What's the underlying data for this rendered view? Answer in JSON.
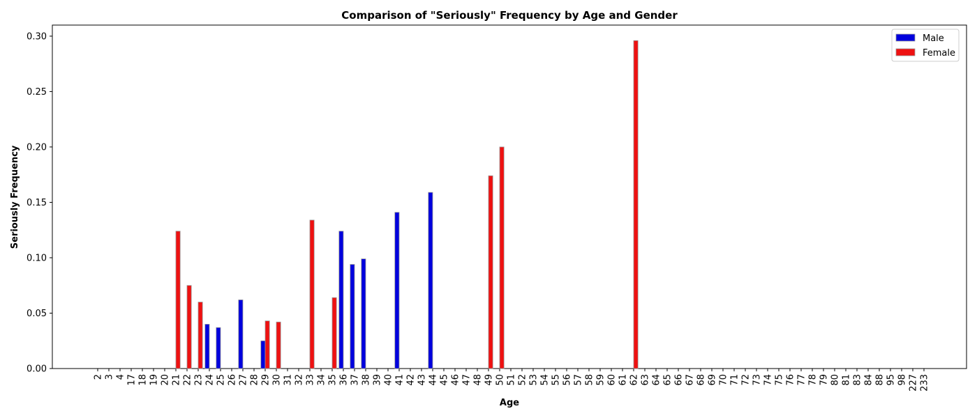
{
  "chart_data": {
    "type": "bar",
    "title": "Comparison of \"Seriously\" Frequency by Age and Gender",
    "xlabel": "Age",
    "ylabel": "Seriously Frequency",
    "ylim": [
      0,
      0.31
    ],
    "yticks": [
      "0.00",
      "0.05",
      "0.10",
      "0.15",
      "0.20",
      "0.25",
      "0.30"
    ],
    "grid": false,
    "legend_position": "top-right",
    "categories": [
      "2",
      "3",
      "4",
      "17",
      "18",
      "19",
      "20",
      "21",
      "22",
      "23",
      "24",
      "25",
      "26",
      "27",
      "28",
      "29",
      "30",
      "31",
      "32",
      "33",
      "34",
      "35",
      "36",
      "37",
      "38",
      "39",
      "40",
      "41",
      "42",
      "43",
      "44",
      "45",
      "46",
      "47",
      "48",
      "49",
      "50",
      "51",
      "52",
      "53",
      "54",
      "55",
      "56",
      "57",
      "58",
      "59",
      "60",
      "61",
      "62",
      "63",
      "64",
      "65",
      "66",
      "67",
      "68",
      "69",
      "70",
      "71",
      "72",
      "73",
      "74",
      "75",
      "76",
      "77",
      "78",
      "79",
      "80",
      "81",
      "83",
      "84",
      "88",
      "95",
      "98",
      "227",
      "233"
    ],
    "series": [
      {
        "name": "Male",
        "color": "#0000dd",
        "values": [
          0,
          0,
          0,
          0,
          0,
          0,
          0,
          0,
          0,
          0,
          0.04,
          0.037,
          0,
          0.062,
          0,
          0.025,
          0,
          0,
          0,
          0,
          0,
          0,
          0.124,
          0.094,
          0.099,
          0,
          0,
          0.141,
          0,
          0,
          0.159,
          0,
          0,
          0,
          0,
          0,
          0,
          0,
          0,
          0,
          0,
          0,
          0,
          0,
          0,
          0,
          0,
          0,
          0,
          0,
          0,
          0,
          0,
          0,
          0,
          0,
          0,
          0,
          0,
          0,
          0,
          0,
          0,
          0,
          0,
          0,
          0,
          0,
          0,
          0,
          0,
          0,
          0,
          0,
          0
        ]
      },
      {
        "name": "Female",
        "color": "#ee1111",
        "values": [
          0,
          0,
          0,
          0,
          0,
          0,
          0,
          0.124,
          0.075,
          0.06,
          0,
          0,
          0,
          0,
          0,
          0.043,
          0.042,
          0,
          0,
          0.134,
          0,
          0.064,
          0,
          0,
          0,
          0,
          0,
          0,
          0,
          0,
          0,
          0,
          0,
          0,
          0,
          0.174,
          0.2,
          0,
          0,
          0,
          0,
          0,
          0,
          0,
          0,
          0,
          0,
          0,
          0.296,
          0,
          0,
          0,
          0,
          0,
          0,
          0,
          0,
          0,
          0,
          0,
          0,
          0,
          0,
          0,
          0,
          0,
          0,
          0,
          0,
          0,
          0,
          0,
          0,
          0,
          0
        ]
      }
    ]
  }
}
